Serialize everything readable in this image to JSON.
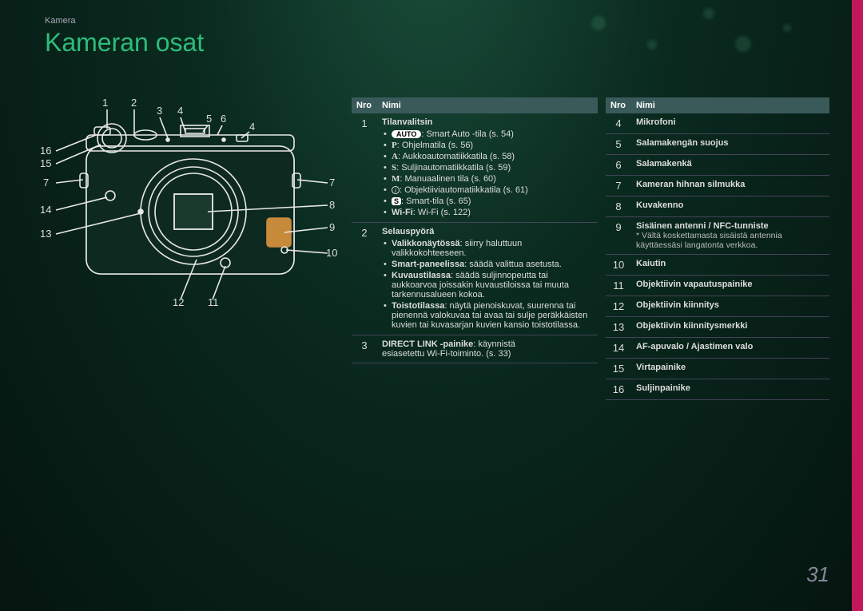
{
  "breadcrumb": "Kamera",
  "title": "Kameran osat",
  "page_number": "31",
  "accent_color": "#c2185b",
  "title_color": "#2dbd7b",
  "diagram": {
    "callouts_top": [
      "1",
      "2",
      "3",
      "4",
      "5",
      "6",
      "4"
    ],
    "callouts_left": [
      "16",
      "15",
      "7",
      "14",
      "13"
    ],
    "callouts_right": [
      "7",
      "8",
      "9",
      "10"
    ],
    "callouts_bottom": [
      "12",
      "11"
    ]
  },
  "table_left": {
    "headers": {
      "nro": "Nro",
      "nimi": "Nimi"
    },
    "rows": [
      {
        "num": "1",
        "title": "Tilanvalitsin",
        "items": [
          {
            "badge": "AUTO",
            "text": ": Smart Auto -tila (s. 54)"
          },
          {
            "letter": "P",
            "text": ": Ohjelmatila (s. 56)"
          },
          {
            "letter": "A",
            "text": ": Aukkoautomatiikkatila (s. 58)"
          },
          {
            "letter": "S",
            "text": ": Suljinautomatiikkatila (s. 59)"
          },
          {
            "letter": "M",
            "text": ": Manuaalinen tila (s. 60)"
          },
          {
            "icon": "i",
            "text": ": Objektiiviautomatiikkatila (s. 61)"
          },
          {
            "badge_s": "S",
            "text": ": Smart-tila (s. 65)"
          },
          {
            "wifi": "Wi-Fi",
            "text": ": Wi-Fi (s. 122)"
          }
        ]
      },
      {
        "num": "2",
        "title": "Selauspyörä",
        "items": [
          {
            "bold": "Valikkonäytössä",
            "text": ": siirry haluttuun valikkokohteeseen."
          },
          {
            "bold": "Smart-paneelissa",
            "text": ": säädä valittua asetusta."
          },
          {
            "bold": "Kuvaustilassa",
            "text": ": säädä suljinnopeutta tai aukkoarvoa joissakin kuvaustiloissa tai muuta tarkennusalueen kokoa."
          },
          {
            "bold": "Toistotilassa",
            "text": ": näytä pienoiskuvat, suurenna tai pienennä valokuvaa tai avaa tai sulje peräkkäisten kuvien tai kuvasarjan kuvien kansio toistotilassa."
          }
        ]
      },
      {
        "num": "3",
        "line1_bold": "DIRECT LINK -painike",
        "line1_rest": ": käynnistä",
        "line2": "esiasetettu Wi-Fi-toiminto. (s. 33)"
      }
    ]
  },
  "table_right": {
    "headers": {
      "nro": "Nro",
      "nimi": "Nimi"
    },
    "rows": [
      {
        "num": "4",
        "name": "Mikrofoni"
      },
      {
        "num": "5",
        "name": "Salamakengän suojus"
      },
      {
        "num": "6",
        "name": "Salamakenkä"
      },
      {
        "num": "7",
        "name": "Kameran hihnan silmukka"
      },
      {
        "num": "8",
        "name": "Kuvakenno"
      },
      {
        "num": "9",
        "name": "Sisäinen antenni / NFC-tunniste",
        "note": "* Vältä koskettamasta sisäistä antennia käyttäessäsi langatonta verkkoa."
      },
      {
        "num": "10",
        "name": "Kaiutin"
      },
      {
        "num": "11",
        "name": "Objektiivin vapautuspainike"
      },
      {
        "num": "12",
        "name": "Objektiivin kiinnitys"
      },
      {
        "num": "13",
        "name": "Objektiivin kiinnitysmerkki"
      },
      {
        "num": "14",
        "name": "AF-apuvalo / Ajastimen valo"
      },
      {
        "num": "15",
        "name": "Virtapainike"
      },
      {
        "num": "16",
        "name": "Suljinpainike"
      }
    ]
  }
}
